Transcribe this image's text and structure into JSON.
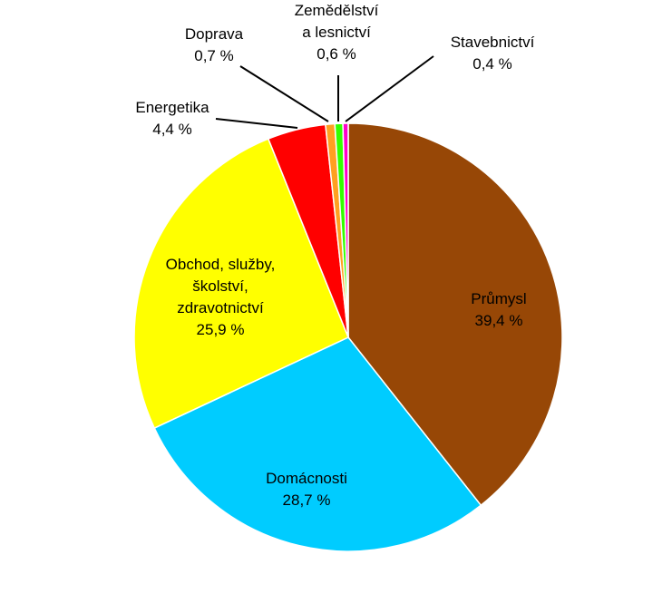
{
  "chart_data": {
    "type": "pie",
    "title": "",
    "slices": [
      {
        "label_lines": [
          "Průmysl"
        ],
        "value_text": "39,4 %",
        "value": 39.4,
        "color": "#974706"
      },
      {
        "label_lines": [
          "Domácnosti"
        ],
        "value_text": "28,7 %",
        "value": 28.7,
        "color": "#00CCFF"
      },
      {
        "label_lines": [
          "Obchod, služby,",
          "školství,",
          "zdravotnictví"
        ],
        "value_text": "25,9 %",
        "value": 25.9,
        "color": "#FFFF00"
      },
      {
        "label_lines": [
          "Energetika"
        ],
        "value_text": "4,4 %",
        "value": 4.4,
        "color": "#FF0000"
      },
      {
        "label_lines": [
          "Doprava"
        ],
        "value_text": "0,7 %",
        "value": 0.7,
        "color": "#FFA020"
      },
      {
        "label_lines": [
          "Zemědělství",
          "a lesnictví"
        ],
        "value_text": "0,6 %",
        "value": 0.6,
        "color": "#33FF00"
      },
      {
        "label_lines": [
          "Stavebnictví"
        ],
        "value_text": "0,4 %",
        "value": 0.4,
        "color": "#FF00CC"
      }
    ]
  }
}
